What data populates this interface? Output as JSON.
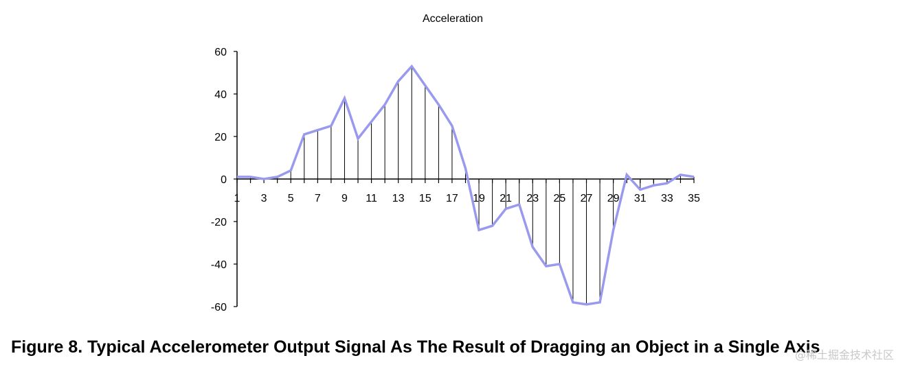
{
  "chart_data": {
    "type": "line",
    "title": "Acceleration",
    "xlabel": "",
    "ylabel": "",
    "x": [
      1,
      2,
      3,
      4,
      5,
      6,
      7,
      8,
      9,
      10,
      11,
      12,
      13,
      14,
      15,
      16,
      17,
      18,
      19,
      20,
      21,
      22,
      23,
      24,
      25,
      26,
      27,
      28,
      29,
      30,
      31,
      32,
      33,
      34,
      35
    ],
    "x_tick_labels": [
      "1",
      "3",
      "5",
      "7",
      "9",
      "11",
      "13",
      "15",
      "17",
      "19",
      "21",
      "23",
      "25",
      "27",
      "29",
      "31",
      "33",
      "35"
    ],
    "y_tick_labels": [
      "60",
      "40",
      "20",
      "0",
      "-20",
      "-40",
      "-60"
    ],
    "ylim": [
      -60,
      60
    ],
    "xlim": [
      1,
      35
    ],
    "grid": false,
    "drop_lines": true,
    "series": [
      {
        "values": [
          1,
          1,
          0,
          1,
          4,
          21,
          23,
          25,
          38,
          19,
          27,
          35,
          46,
          53,
          44,
          35,
          25,
          5,
          -24,
          -22,
          -14,
          -12,
          -32,
          -41,
          -40,
          -58,
          -59,
          -58,
          -24,
          2,
          -5,
          -3,
          -2,
          2,
          1
        ],
        "color": "#9999ee"
      }
    ]
  },
  "caption": "Figure 8.  Typical Accelerometer Output Signal As The Result of Dragging an Object in a Single Axis",
  "watermark": "@稀土掘金技术社区"
}
